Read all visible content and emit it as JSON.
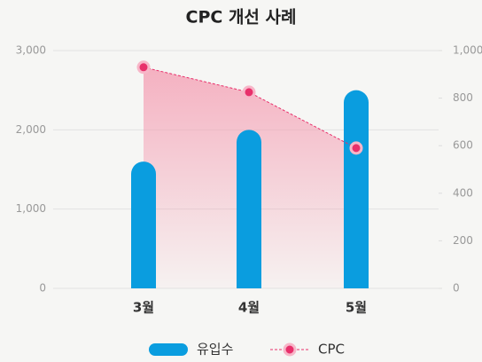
{
  "chart_data": {
    "type": "bar",
    "title": "CPC 개선 사례",
    "categories": [
      "3월",
      "4월",
      "5월"
    ],
    "series": [
      {
        "name": "유입수",
        "type": "bar",
        "color": "#0a9ddf",
        "values": [
          1600,
          2000,
          2500
        ]
      },
      {
        "name": "CPC",
        "type": "line",
        "axis": "y2",
        "color": "#e8306b",
        "values": [
          930,
          825,
          590
        ]
      }
    ],
    "ylim": [
      0,
      3000
    ],
    "yticks": [
      0,
      {
        "value": 1000,
        "label": "1,000"
      },
      {
        "value": 2000,
        "label": "2,000"
      },
      {
        "value": 3000,
        "label": "3,000"
      }
    ],
    "y2lim": [
      0,
      1000
    ],
    "y2ticks": [
      0,
      200,
      400,
      600,
      800,
      {
        "value": 1000,
        "label": "1,000"
      }
    ],
    "grid": true
  }
}
